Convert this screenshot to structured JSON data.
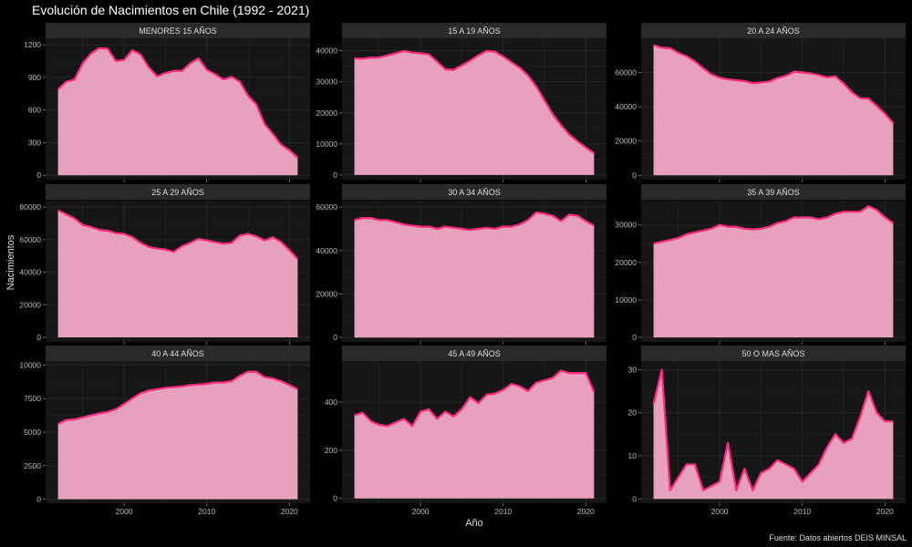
{
  "title": "Evolución de Nacimientos en Chile (1992 - 2021)",
  "ylabel": "Nacimientos",
  "xlabel": "Año",
  "caption": "Fuente: Datos abiertos DEIS MINSAL",
  "colors": {
    "fill": "#e8a1bd",
    "line": "#ff2a7f",
    "panel": "#161616",
    "strip": "#2a2a2a",
    "grid": "#262626"
  },
  "chart_data": [
    {
      "type": "area",
      "title": "MENORES 15 AÑOS",
      "x": [
        1992,
        1993,
        1994,
        1995,
        1996,
        1997,
        1998,
        1999,
        2000,
        2001,
        2002,
        2003,
        2004,
        2005,
        2006,
        2007,
        2008,
        2009,
        2010,
        2011,
        2012,
        2013,
        2014,
        2015,
        2016,
        2017,
        2018,
        2019,
        2020,
        2021
      ],
      "values": [
        790,
        860,
        880,
        1030,
        1120,
        1170,
        1165,
        1050,
        1060,
        1150,
        1110,
        990,
        910,
        940,
        960,
        960,
        1030,
        1075,
        970,
        930,
        880,
        905,
        860,
        730,
        650,
        470,
        380,
        280,
        230,
        160
      ],
      "ylim": [
        -40,
        1260
      ],
      "yticks": [
        0,
        300,
        600,
        900,
        1200
      ],
      "yticklabels": [
        "0",
        "300",
        "600",
        "900",
        "1200"
      ]
    },
    {
      "type": "area",
      "title": "15 A 19 AÑOS",
      "x": [
        1992,
        1993,
        1994,
        1995,
        1996,
        1997,
        1998,
        1999,
        2000,
        2001,
        2002,
        2003,
        2004,
        2005,
        2006,
        2007,
        2008,
        2009,
        2010,
        2011,
        2012,
        2013,
        2014,
        2015,
        2016,
        2017,
        2018,
        2019,
        2020,
        2021
      ],
      "values": [
        37500,
        37400,
        37800,
        37800,
        38500,
        39200,
        39900,
        39400,
        39200,
        38800,
        36500,
        34000,
        33800,
        35300,
        36800,
        38500,
        39900,
        39700,
        38100,
        36300,
        34500,
        32000,
        28500,
        24000,
        19500,
        16000,
        13000,
        10800,
        8800,
        7000
      ],
      "ylim": [
        -1500,
        44000
      ],
      "yticks": [
        0,
        10000,
        20000,
        30000,
        40000
      ],
      "yticklabels": [
        "0",
        "10000",
        "20000",
        "30000",
        "40000"
      ]
    },
    {
      "type": "area",
      "title": "20 A 24 AÑOS",
      "x": [
        1992,
        1993,
        1994,
        1995,
        1996,
        1997,
        1998,
        1999,
        2000,
        2001,
        2002,
        2003,
        2004,
        2005,
        2006,
        2007,
        2008,
        2009,
        2010,
        2011,
        2012,
        2013,
        2014,
        2015,
        2016,
        2017,
        2018,
        2019,
        2020,
        2021
      ],
      "values": [
        76000,
        74500,
        74200,
        71500,
        69500,
        66500,
        62500,
        59000,
        57000,
        56000,
        55500,
        55000,
        53800,
        54200,
        54800,
        56800,
        58000,
        60500,
        60100,
        59500,
        58500,
        57200,
        57800,
        53500,
        48500,
        45000,
        44800,
        40500,
        36000,
        30500
      ],
      "ylim": [
        -2500,
        80000
      ],
      "yticks": [
        0,
        20000,
        40000,
        60000
      ],
      "yticklabels": [
        "0",
        "20000",
        "40000",
        "60000"
      ]
    },
    {
      "type": "area",
      "title": "25 A 29 AÑOS",
      "x": [
        1992,
        1993,
        1994,
        1995,
        1996,
        1997,
        1998,
        1999,
        2000,
        2001,
        2002,
        2003,
        2004,
        2005,
        2006,
        2007,
        2008,
        2009,
        2010,
        2011,
        2012,
        2013,
        2014,
        2015,
        2016,
        2017,
        2018,
        2019,
        2020,
        2021
      ],
      "values": [
        78000,
        75500,
        73000,
        69000,
        67800,
        66000,
        65500,
        64000,
        63500,
        61500,
        58000,
        55500,
        54500,
        54000,
        52500,
        56000,
        58000,
        60500,
        59500,
        58500,
        57500,
        58000,
        62500,
        63500,
        62000,
        59500,
        61500,
        58500,
        53500,
        48000
      ],
      "ylim": [
        -2800,
        84000
      ],
      "yticks": [
        0,
        20000,
        40000,
        60000,
        80000
      ],
      "yticklabels": [
        "0",
        "20000",
        "40000",
        "60000",
        "80000"
      ]
    },
    {
      "type": "area",
      "title": "30 A 34 AÑOS",
      "x": [
        1992,
        1993,
        1994,
        1995,
        1996,
        1997,
        1998,
        1999,
        2000,
        2001,
        2002,
        2003,
        2004,
        2005,
        2006,
        2007,
        2008,
        2009,
        2010,
        2011,
        2012,
        2013,
        2014,
        2015,
        2016,
        2017,
        2018,
        2019,
        2020,
        2021
      ],
      "values": [
        54000,
        55000,
        55000,
        54000,
        54000,
        53000,
        52000,
        51500,
        51000,
        51000,
        50000,
        51000,
        50500,
        50000,
        49500,
        50000,
        50500,
        50000,
        51000,
        51000,
        52000,
        54000,
        57500,
        57000,
        56000,
        53500,
        56500,
        56000,
        53500,
        51500
      ],
      "ylim": [
        -2000,
        63000
      ],
      "yticks": [
        0,
        20000,
        40000,
        60000
      ],
      "yticklabels": [
        "0",
        "20000",
        "40000",
        "60000"
      ]
    },
    {
      "type": "area",
      "title": "35 A 39 AÑOS",
      "x": [
        1992,
        1993,
        1994,
        1995,
        1996,
        1997,
        1998,
        1999,
        2000,
        2001,
        2002,
        2003,
        2004,
        2005,
        2006,
        2007,
        2008,
        2009,
        2010,
        2011,
        2012,
        2013,
        2014,
        2015,
        2016,
        2017,
        2018,
        2019,
        2020,
        2021
      ],
      "values": [
        25000,
        25500,
        26000,
        26500,
        27500,
        28000,
        28500,
        29000,
        30000,
        29500,
        29500,
        29000,
        28800,
        29000,
        29500,
        30500,
        31000,
        32000,
        32000,
        32000,
        31500,
        32000,
        33000,
        33500,
        33500,
        33500,
        35000,
        34000,
        32000,
        30500
      ],
      "ylim": [
        -1200,
        36500
      ],
      "yticks": [
        0,
        10000,
        20000,
        30000
      ],
      "yticklabels": [
        "0",
        "10000",
        "20000",
        "30000"
      ]
    },
    {
      "type": "area",
      "title": "40 A 44 AÑOS",
      "x": [
        1992,
        1993,
        1994,
        1995,
        1996,
        1997,
        1998,
        1999,
        2000,
        2001,
        2002,
        2003,
        2004,
        2005,
        2006,
        2007,
        2008,
        2009,
        2010,
        2011,
        2012,
        2013,
        2014,
        2015,
        2016,
        2017,
        2018,
        2019,
        2020,
        2021
      ],
      "values": [
        5600,
        5900,
        5950,
        6100,
        6250,
        6400,
        6500,
        6700,
        7100,
        7500,
        7900,
        8100,
        8200,
        8300,
        8350,
        8400,
        8500,
        8550,
        8600,
        8700,
        8700,
        8800,
        9200,
        9500,
        9500,
        9100,
        9000,
        8800,
        8500,
        8200
      ],
      "ylim": [
        -300,
        10300
      ],
      "yticks": [
        0,
        2500,
        5000,
        7500,
        10000
      ],
      "yticklabels": [
        "0",
        "2500",
        "5000",
        "7500",
        "10000"
      ]
    },
    {
      "type": "area",
      "title": "45 A 49 AÑOS",
      "x": [
        1992,
        1993,
        1994,
        1995,
        1996,
        1997,
        1998,
        1999,
        2000,
        2001,
        2002,
        2003,
        2004,
        2005,
        2006,
        2007,
        2008,
        2009,
        2010,
        2011,
        2012,
        2013,
        2014,
        2015,
        2016,
        2017,
        2018,
        2019,
        2020,
        2021
      ],
      "values": [
        345,
        355,
        320,
        305,
        300,
        315,
        330,
        300,
        360,
        370,
        330,
        360,
        340,
        370,
        420,
        395,
        430,
        435,
        450,
        475,
        465,
        445,
        480,
        490,
        500,
        530,
        520,
        520,
        520,
        440
      ],
      "ylim": [
        -20,
        570
      ],
      "yticks": [
        0,
        200,
        400
      ],
      "yticklabels": [
        "0",
        "200",
        "400"
      ]
    },
    {
      "type": "area",
      "title": "50 O MAS AÑOS",
      "x": [
        1992,
        1993,
        1994,
        1995,
        1996,
        1997,
        1998,
        1999,
        2000,
        2001,
        2002,
        2003,
        2004,
        2005,
        2006,
        2007,
        2008,
        2009,
        2010,
        2011,
        2012,
        2013,
        2014,
        2015,
        2016,
        2017,
        2018,
        2019,
        2020,
        2021
      ],
      "values": [
        22,
        30,
        2,
        5,
        8,
        8,
        2,
        3,
        4,
        13,
        2,
        7,
        2,
        6,
        7,
        9,
        8,
        7,
        4,
        6,
        8,
        12,
        15,
        13,
        14,
        19,
        25,
        20,
        18,
        18
      ],
      "ylim": [
        -1,
        32
      ],
      "yticks": [
        0,
        10,
        20,
        30
      ],
      "yticklabels": [
        "0",
        "10",
        "20",
        "30"
      ]
    }
  ],
  "xaxis": {
    "xlim": [
      1990.5,
      2022.5
    ],
    "ticks": [
      2000,
      2010,
      2020
    ],
    "ticklabels": [
      "2000",
      "2010",
      "2020"
    ]
  }
}
